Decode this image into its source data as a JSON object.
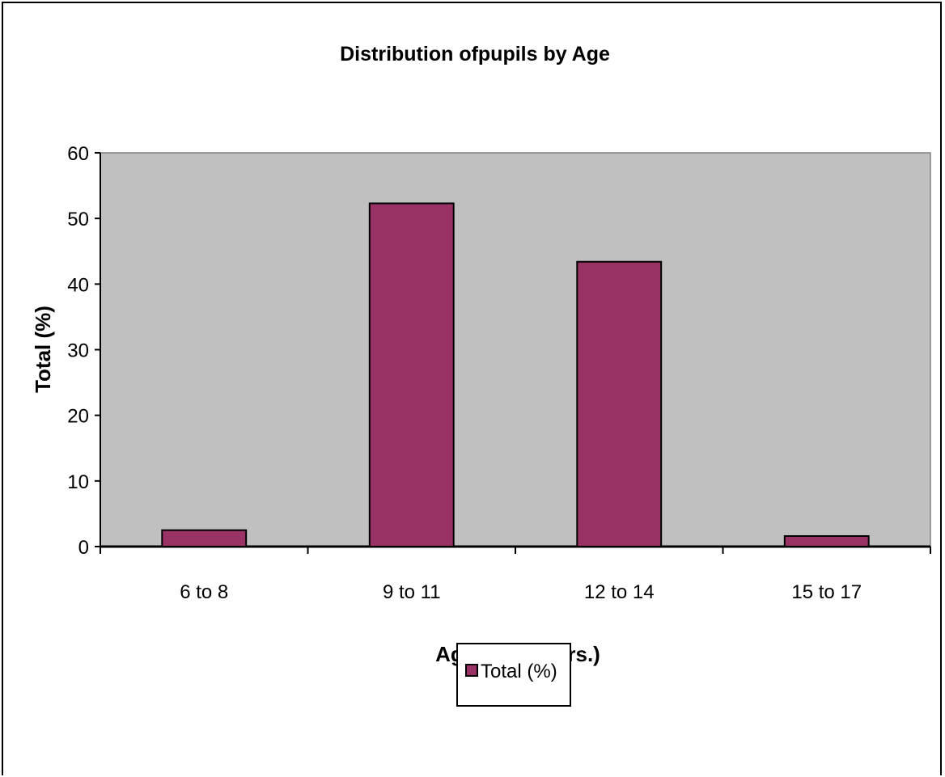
{
  "chart_data": {
    "type": "bar",
    "title": "Distribution ofpupils by Age",
    "xlabel": "Age group (Yrs.)",
    "ylabel": "Total (%)",
    "categories": [
      "6 to 8",
      "9 to 11",
      "12 to 14",
      "15 to 17"
    ],
    "series": [
      {
        "name": "Total (%)",
        "values": [
          2.5,
          52.3,
          43.4,
          1.6
        ]
      }
    ],
    "ylim": [
      0,
      60
    ],
    "yticks": [
      0,
      10,
      20,
      30,
      40,
      50,
      60
    ],
    "grid": false,
    "legend": "bottom",
    "colors": {
      "bar": "#993366",
      "plot_area": "#c0c0c0",
      "axis": "#000000",
      "plot_border": "#808080"
    }
  }
}
